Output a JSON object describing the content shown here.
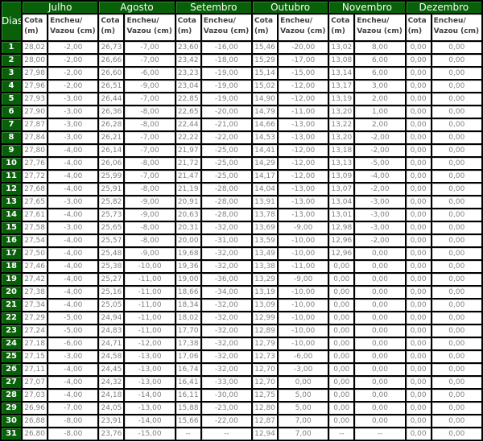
{
  "table": {
    "day_header": "Dias",
    "cota_header": "Cota (m)",
    "encheu_header": "Encheu/ Vazou (cm)",
    "months": [
      "Julho",
      "Agosto",
      "Setembro",
      "Outubro",
      "Novembro",
      "Dezembro"
    ],
    "colors": {
      "header_green": "#086108",
      "grid_black": "#000000",
      "header_text": "#ffffff",
      "subheader_text": "#3f3f3f",
      "data_text": "#808080"
    },
    "rows": [
      {
        "day": "1",
        "values": [
          "28,02",
          "-2,00",
          "26,73",
          "-7,00",
          "23,60",
          "-16,00",
          "15,46",
          "-20,00",
          "13,02",
          "8,00",
          "0,00",
          "0,00"
        ]
      },
      {
        "day": "2",
        "values": [
          "28,00",
          "-2,00",
          "26,66",
          "-7,00",
          "23,42",
          "-18,00",
          "15,29",
          "-17,00",
          "13,08",
          "6,00",
          "0,00",
          "0,00"
        ]
      },
      {
        "day": "3",
        "values": [
          "27,98",
          "-2,00",
          "26,60",
          "-6,00",
          "23,23",
          "-19,00",
          "15,14",
          "-15,00",
          "13,14",
          "6,00",
          "0,00",
          "0,00"
        ]
      },
      {
        "day": "4",
        "values": [
          "27,96",
          "-2,00",
          "26,51",
          "-9,00",
          "23,04",
          "-19,00",
          "15,02",
          "-12,00",
          "13,17",
          "3,00",
          "0,00",
          "0,00"
        ]
      },
      {
        "day": "5",
        "values": [
          "27,93",
          "-3,00",
          "26,44",
          "-7,00",
          "22,85",
          "-19,00",
          "14,90",
          "-12,00",
          "13,19",
          "2,00",
          "0,00",
          "0,00"
        ]
      },
      {
        "day": "6",
        "values": [
          "27,90",
          "-3,00",
          "26,36",
          "-8,00",
          "22,65",
          "-20,00",
          "14,79",
          "-11,00",
          "13,20",
          "1,00",
          "0,00",
          "0,00"
        ]
      },
      {
        "day": "7",
        "values": [
          "27,87",
          "-3,00",
          "26,28",
          "-8,00",
          "22,44",
          "-21,00",
          "14,66",
          "-13,00",
          "13,22",
          "2,00",
          "0,00",
          "0,00"
        ]
      },
      {
        "day": "8",
        "values": [
          "27,84",
          "-3,00",
          "26,21",
          "-7,00",
          "22,22",
          "-22,00",
          "14,53",
          "-13,00",
          "13,20",
          "-2,00",
          "0,00",
          "0,00"
        ]
      },
      {
        "day": "9",
        "values": [
          "27,80",
          "-4,00",
          "26,14",
          "-7,00",
          "21,97",
          "-25,00",
          "14,41",
          "-12,00",
          "13,18",
          "-2,00",
          "0,00",
          "0,00"
        ]
      },
      {
        "day": "10",
        "values": [
          "27,76",
          "-4,00",
          "26,06",
          "-8,00",
          "21,72",
          "-25,00",
          "14,29",
          "-12,00",
          "13,13",
          "-5,00",
          "0,00",
          "0,00"
        ]
      },
      {
        "day": "11",
        "values": [
          "27,72",
          "-4,00",
          "25,99",
          "-7,00",
          "21,47",
          "-25,00",
          "14,17",
          "-12,00",
          "13,09",
          "-4,00",
          "0,00",
          "0,00"
        ]
      },
      {
        "day": "12",
        "values": [
          "27,68",
          "-4,00",
          "25,91",
          "-8,00",
          "21,19",
          "-28,00",
          "14,04",
          "-13,00",
          "13,07",
          "-2,00",
          "0,00",
          "0,00"
        ]
      },
      {
        "day": "13",
        "values": [
          "27,65",
          "-3,00",
          "25,82",
          "-9,00",
          "20,91",
          "-28,00",
          "13,91",
          "-13,00",
          "13,04",
          "-3,00",
          "0,00",
          "0,00"
        ]
      },
      {
        "day": "14",
        "values": [
          "27,61",
          "-4,00",
          "25,73",
          "-9,00",
          "20,63",
          "-28,00",
          "13,78",
          "-13,00",
          "13,01",
          "-3,00",
          "0,00",
          "0,00"
        ]
      },
      {
        "day": "15",
        "values": [
          "27,58",
          "-3,00",
          "25,65",
          "-8,00",
          "20,31",
          "-32,00",
          "13,69",
          "-9,00",
          "12,98",
          "-3,00",
          "0,00",
          "0,00"
        ]
      },
      {
        "day": "16",
        "values": [
          "27,54",
          "-4,00",
          "25,57",
          "-8,00",
          "20,00",
          "-31,00",
          "13,59",
          "-10,00",
          "12,96",
          "-2,00",
          "0,00",
          "0,00"
        ]
      },
      {
        "day": "17",
        "values": [
          "27,50",
          "-4,00",
          "25,48",
          "-9,00",
          "19,68",
          "-32,00",
          "13,49",
          "-10,00",
          "12,96",
          "0,00",
          "0,00",
          "0,00"
        ]
      },
      {
        "day": "18",
        "values": [
          "27,46",
          "-4,00",
          "25,38",
          "-10,00",
          "19,36",
          "-32,00",
          "13,38",
          "-11,00",
          "0,00",
          "0,00",
          "0,00",
          "0,00"
        ]
      },
      {
        "day": "19",
        "values": [
          "27,42",
          "-4,00",
          "25,27",
          "-11,00",
          "19,00",
          "-36,00",
          "13,29",
          "-9,00",
          "0,00",
          "0,00",
          "0,00",
          "0,00"
        ]
      },
      {
        "day": "20",
        "values": [
          "27,38",
          "-4,00",
          "25,16",
          "-11,00",
          "18,66",
          "-34,00",
          "13,19",
          "-10,00",
          "0,00",
          "0,00",
          "0,00",
          "0,00"
        ]
      },
      {
        "day": "21",
        "values": [
          "27,34",
          "-4,00",
          "25,05",
          "-11,00",
          "18,34",
          "-32,00",
          "13,09",
          "-10,00",
          "0,00",
          "0,00",
          "0,00",
          "0,00"
        ]
      },
      {
        "day": "22",
        "values": [
          "27,29",
          "-5,00",
          "24,94",
          "-11,00",
          "18,02",
          "-32,00",
          "12,99",
          "-10,00",
          "0,00",
          "0,00",
          "0,00",
          "0,00"
        ]
      },
      {
        "day": "23",
        "values": [
          "27,24",
          "-5,00",
          "24,83",
          "-11,00",
          "17,70",
          "-32,00",
          "12,89",
          "-10,00",
          "0,00",
          "0,00",
          "0,00",
          "0,00"
        ]
      },
      {
        "day": "24",
        "values": [
          "27,18",
          "-6,00",
          "24,71",
          "-12,00",
          "17,38",
          "-32,00",
          "12,79",
          "-10,00",
          "0,00",
          "0,00",
          "0,00",
          "0,00"
        ]
      },
      {
        "day": "25",
        "values": [
          "27,15",
          "-3,00",
          "24,58",
          "-13,00",
          "17,06",
          "-32,00",
          "12,73",
          "-6,00",
          "0,00",
          "0,00",
          "0,00",
          "0,00"
        ]
      },
      {
        "day": "26",
        "values": [
          "27,11",
          "-4,00",
          "24,45",
          "-13,00",
          "16,74",
          "-32,00",
          "12,70",
          "-3,00",
          "0,00",
          "0,00",
          "0,00",
          "0,00"
        ]
      },
      {
        "day": "27",
        "values": [
          "27,07",
          "-4,00",
          "24,32",
          "-13,00",
          "16,41",
          "-33,00",
          "12,70",
          "0,00",
          "0,00",
          "0,00",
          "0,00",
          "0,00"
        ]
      },
      {
        "day": "28",
        "values": [
          "27,03",
          "-4,00",
          "24,18",
          "-14,00",
          "16,11",
          "-30,00",
          "12,75",
          "5,00",
          "0,00",
          "0,00",
          "0,00",
          "0,00"
        ]
      },
      {
        "day": "29",
        "values": [
          "26,96",
          "-7,00",
          "24,05",
          "-13,00",
          "15,88",
          "-23,00",
          "12,80",
          "5,00",
          "0,00",
          "0,00",
          "0,00",
          "0,00"
        ]
      },
      {
        "day": "30",
        "values": [
          "26,88",
          "-8,00",
          "23,91",
          "-14,00",
          "15,66",
          "-22,00",
          "12,87",
          "7,00",
          "0,00",
          "0,00",
          "0,00",
          "0,00"
        ]
      },
      {
        "day": "31",
        "values": [
          "26,80",
          "-8,00",
          "23,76",
          "-15,00",
          "--",
          "--",
          "12,94",
          "7,00",
          "--",
          "--",
          "0,00",
          "0,00"
        ]
      }
    ]
  }
}
